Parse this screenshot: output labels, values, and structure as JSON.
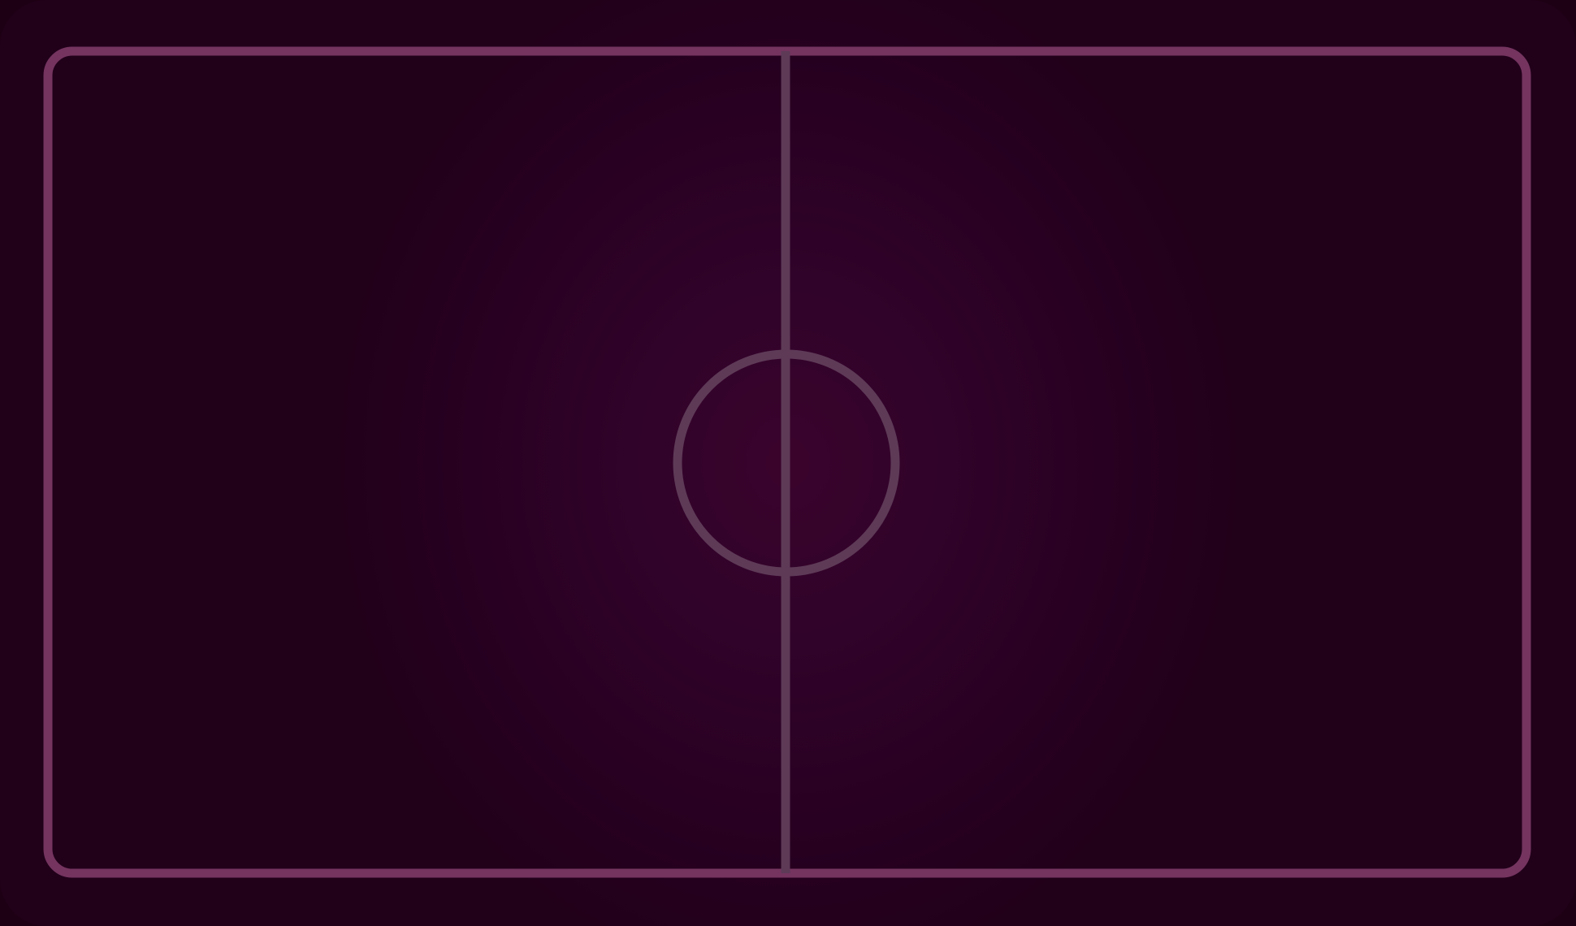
{
  "game": {
    "type": "air-hockey-table",
    "colors": {
      "background_center": "#3a032c",
      "background_edge": "#21001a",
      "boundary_line": "#74345f",
      "center_line": "#5e3a57",
      "center_circle": "#5e3a57"
    }
  }
}
